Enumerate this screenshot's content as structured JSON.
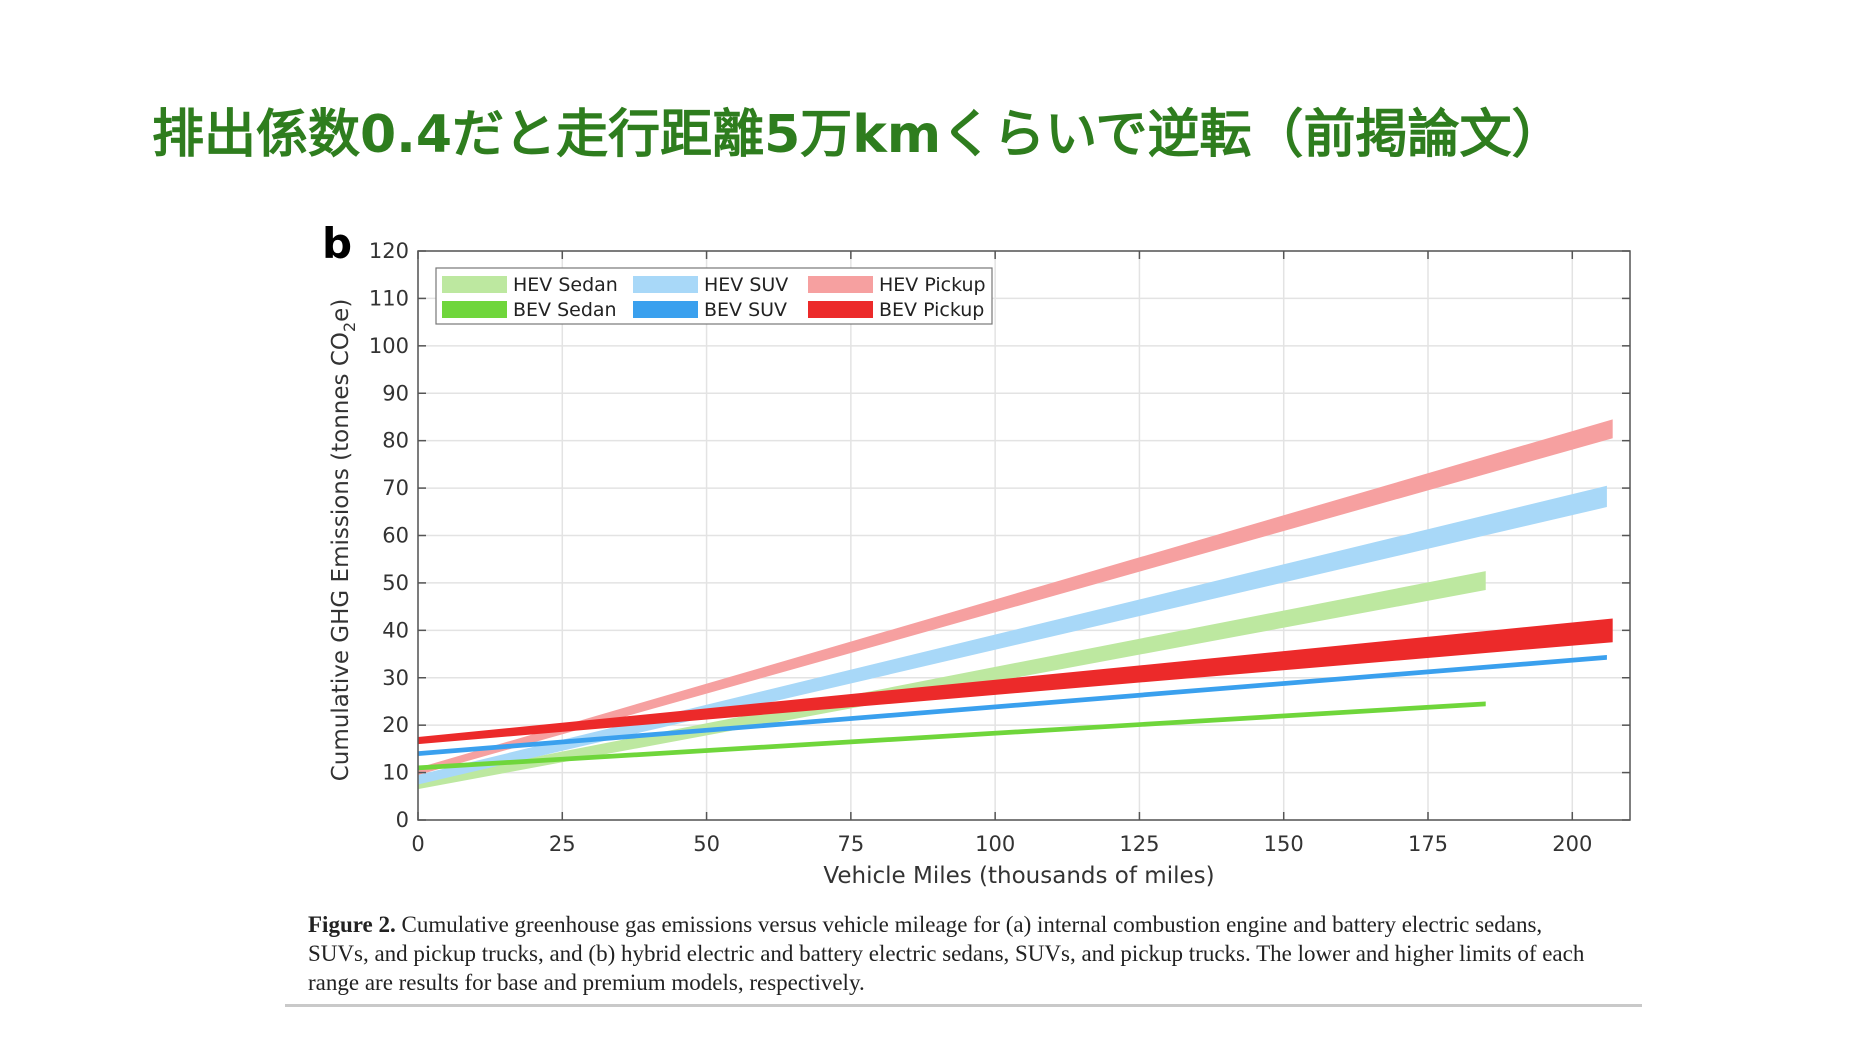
{
  "slide": {
    "title": "排出係数0.4だと走行距離5万kmくらいで逆転（前掲論文）"
  },
  "caption": {
    "label": "Figure 2.",
    "text": " Cumulative greenhouse gas emissions versus vehicle mileage for (a) internal combustion engine and battery electric sedans, SUVs, and pickup trucks, and (b) hybrid electric and battery electric sedans, SUVs, and pickup trucks. The lower and higher limits of each range are results for base and premium models, respectively."
  },
  "chart_data": {
    "type": "area",
    "panel_label": "b",
    "xlabel": "Vehicle Miles (thousands of miles)",
    "ylabel": "Cumulative GHG Emissions (tonnes CO2e)",
    "ylabel_parts": [
      "Cumulative GHG Emissions (tonnes CO",
      "2",
      "e)"
    ],
    "xlim": [
      0,
      210
    ],
    "ylim": [
      0,
      120
    ],
    "xticks": [
      0,
      25,
      50,
      75,
      100,
      125,
      150,
      175,
      200
    ],
    "yticks": [
      0,
      10,
      20,
      30,
      40,
      50,
      60,
      70,
      80,
      90,
      100,
      110,
      120
    ],
    "grid": true,
    "legend_position": "top-left",
    "series": [
      {
        "name": "HEV Sedan",
        "color": "#bde8a0",
        "x": [
          0,
          185
        ],
        "lower": [
          6.5,
          48.5
        ],
        "upper": [
          8.5,
          52.5
        ]
      },
      {
        "name": "HEV SUV",
        "color": "#a8d8f8",
        "x": [
          0,
          206
        ],
        "lower": [
          7.5,
          66
        ],
        "upper": [
          9.5,
          70.5
        ]
      },
      {
        "name": "HEV Pickup",
        "color": "#f6a0a0",
        "x": [
          0,
          207
        ],
        "lower": [
          9.5,
          80.5
        ],
        "upper": [
          11,
          84.5
        ]
      },
      {
        "name": "BEV Sedan",
        "color": "#6fd63b",
        "x": [
          0,
          185
        ],
        "lower": [
          10.5,
          24
        ],
        "upper": [
          11.5,
          25
        ]
      },
      {
        "name": "BEV SUV",
        "color": "#3aa0ee",
        "x": [
          0,
          206
        ],
        "lower": [
          13.5,
          33.8
        ],
        "upper": [
          14.5,
          34.8
        ]
      },
      {
        "name": "BEV Pickup",
        "color": "#ec2a2a",
        "x": [
          0,
          207
        ],
        "lower": [
          16,
          37.5
        ],
        "upper": [
          17.5,
          42.5
        ]
      }
    ]
  }
}
